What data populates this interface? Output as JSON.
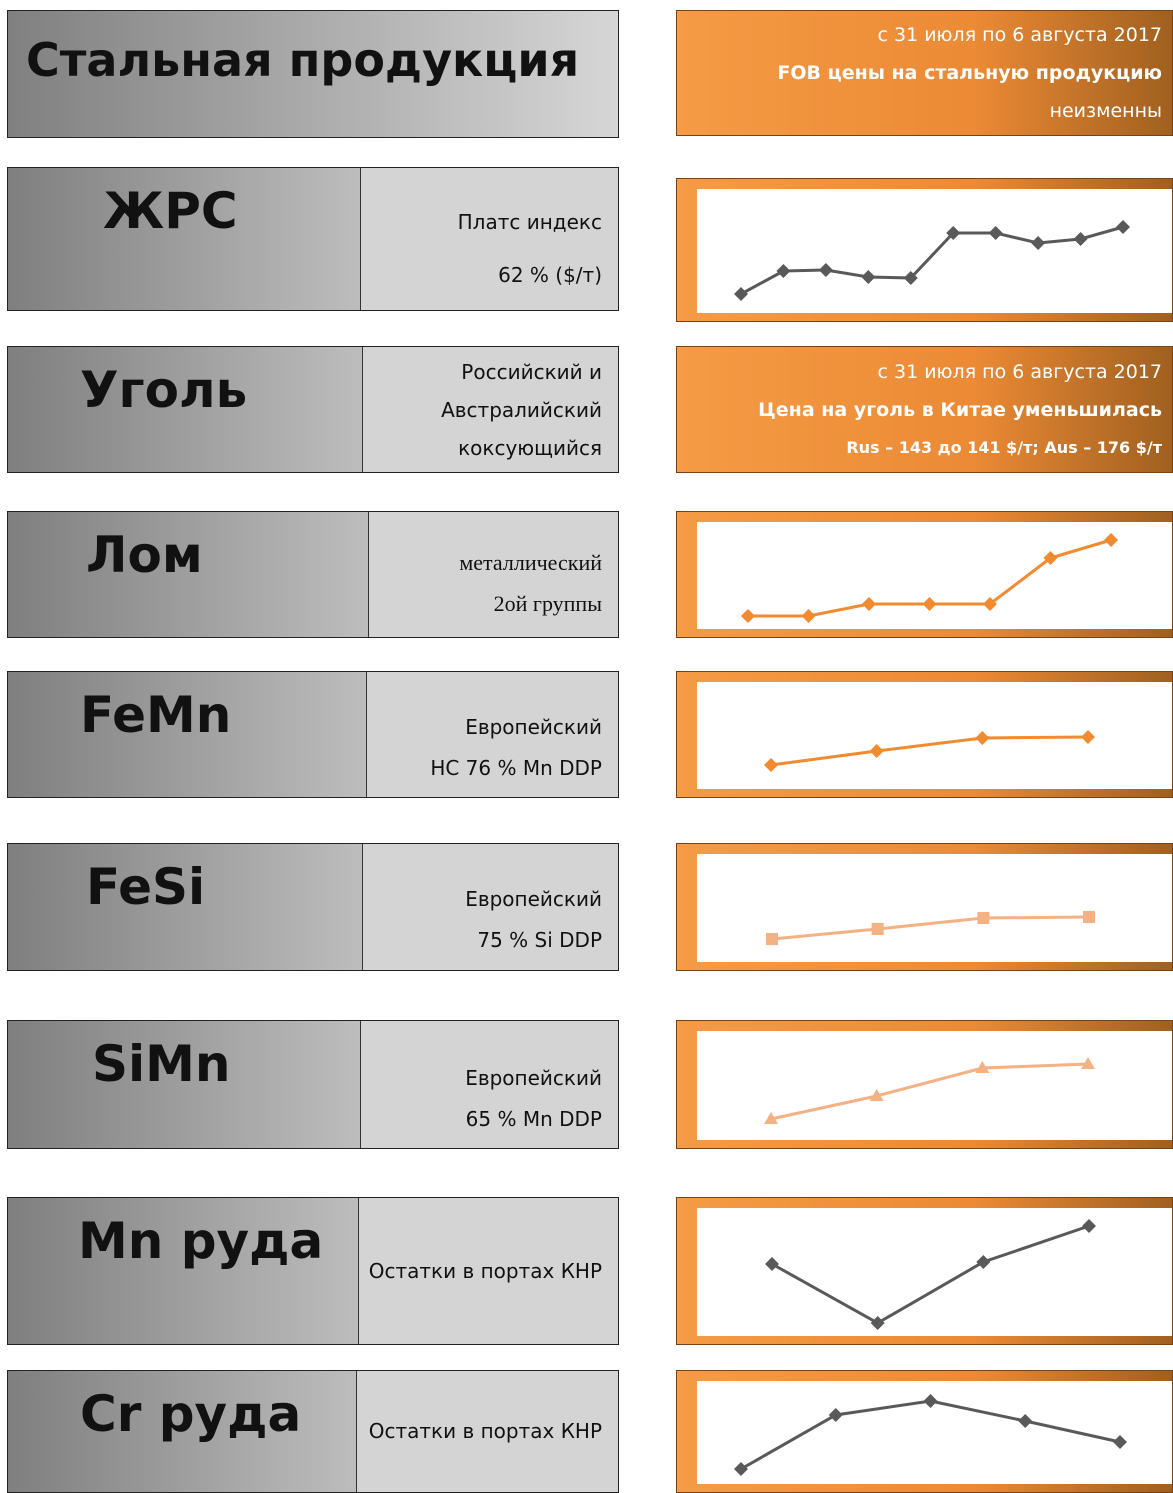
{
  "header": {
    "title": "Стальная продукция",
    "note": [
      "с 31 июля по 6 августа 2017",
      "FOB цены на стальную продукцию",
      "неизменны"
    ]
  },
  "rows": [
    {
      "name": "ЖРС",
      "description": [
        "Платс индекс",
        "62 % ($/т)"
      ],
      "chart": {
        "type": "line",
        "color": "#595959",
        "marker": "diamond",
        "values": [
          20,
          43,
          44,
          37,
          36,
          81,
          81,
          71,
          75,
          87
        ]
      }
    },
    {
      "name": "Уголь",
      "description": [
        "Российский и",
        "Австралийский",
        "коксующийся"
      ],
      "note": [
        "с 31 июля по 6 августа 2017",
        "Цена на уголь в Китае уменьшилась",
        "Rus – 143 до 141 $/т; Aus – 176 $/т"
      ]
    },
    {
      "name": "Лом",
      "description": [
        "металлический",
        "2ой группы"
      ],
      "chart": {
        "type": "line",
        "color": "#f28a30",
        "marker": "diamond",
        "values": [
          14,
          14,
          26,
          26,
          26,
          72,
          90
        ]
      }
    },
    {
      "name": "FeMn",
      "description": [
        "Европейский",
        "HC 76 % Mn DDP"
      ],
      "chart": {
        "type": "line",
        "color": "#f28a30",
        "marker": "diamond",
        "values": [
          25,
          39,
          52,
          53
        ]
      }
    },
    {
      "name": "FeSi",
      "description": [
        "Европейский",
        "75 % Si DDP"
      ],
      "chart": {
        "type": "line",
        "color": "#f4b183",
        "marker": "square",
        "values": [
          24,
          34,
          45,
          46
        ]
      }
    },
    {
      "name": "SiMn",
      "description": [
        "Европейский",
        "65 % Mn DDP"
      ],
      "chart": {
        "type": "line",
        "color": "#f4b183",
        "marker": "triangle",
        "values": [
          22,
          45,
          73,
          77
        ]
      }
    },
    {
      "name": "Mn руда",
      "description": [
        "Остатки в портах КНР"
      ],
      "chart": {
        "type": "line",
        "color": "#595959",
        "marker": "diamond",
        "values": [
          73,
          14,
          75,
          111
        ]
      }
    },
    {
      "name": "Cr руда",
      "description": [
        "Остатки в портах КНР"
      ],
      "chart": {
        "type": "line",
        "color": "#595959",
        "marker": "diamond",
        "values": [
          16,
          70,
          84,
          64,
          43
        ]
      }
    }
  ]
}
